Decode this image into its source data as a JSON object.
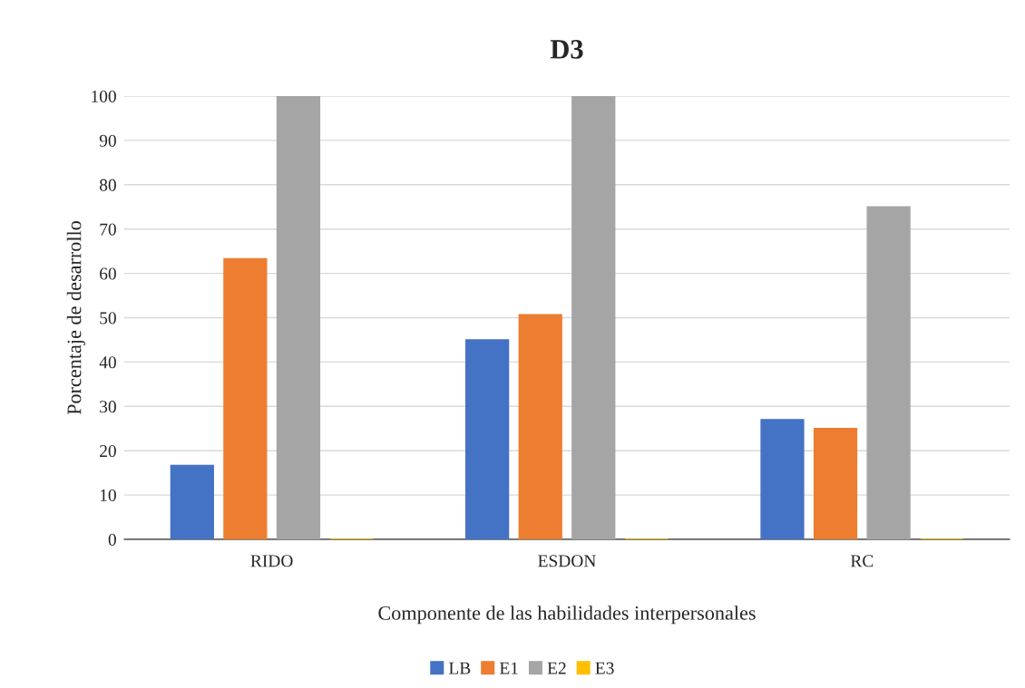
{
  "chart_data": {
    "type": "bar",
    "title": "D3",
    "xlabel": "Componente de las habilidades interpersonales",
    "ylabel": "Porcentaje de desarrollo",
    "categories": [
      "RIDO",
      "ESDON",
      "RC"
    ],
    "series": [
      {
        "name": "LB",
        "color": "#4472c4",
        "values": [
          16.7,
          45,
          27
        ]
      },
      {
        "name": "E1",
        "color": "#ed7d31",
        "values": [
          63.3,
          50.7,
          25
        ]
      },
      {
        "name": "E2",
        "color": "#a5a5a5",
        "values": [
          100,
          100,
          75
        ]
      },
      {
        "name": "E3",
        "color": "#ffc000",
        "values": [
          0,
          0,
          0
        ]
      }
    ],
    "ylim": [
      0,
      100
    ],
    "yticks": [
      0,
      10,
      20,
      30,
      40,
      50,
      60,
      70,
      80,
      90,
      100
    ],
    "grid": "y",
    "legend": "bottom"
  }
}
